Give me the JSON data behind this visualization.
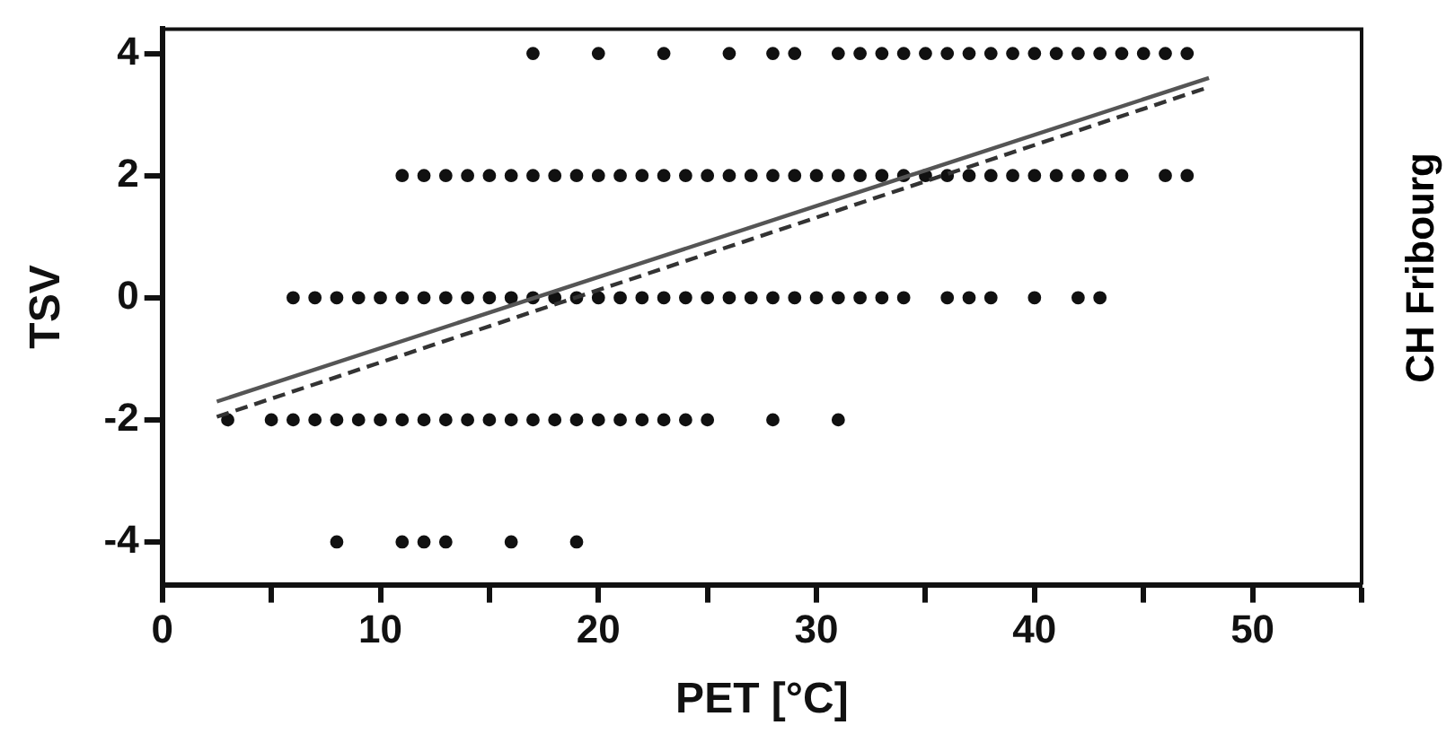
{
  "chart_data": {
    "type": "scatter",
    "xlabel": "PET [°C]",
    "ylabel": "TSV",
    "annotations": [
      "CH Fribourg"
    ],
    "xlim": [
      0,
      55
    ],
    "xticks": [
      0,
      {
        "value": 5,
        "label": null
      },
      10,
      {
        "value": 15,
        "label": null
      },
      20,
      {
        "value": 25,
        "label": null
      },
      30,
      {
        "value": 35,
        "label": null
      },
      40,
      {
        "value": 45,
        "label": null
      },
      50,
      {
        "value": 55,
        "label": null
      }
    ],
    "ylim": [
      -4.7,
      4.4
    ],
    "yticks": [
      -4,
      -2,
      0,
      2,
      4
    ],
    "grid": false,
    "legend": false,
    "marker": "circle",
    "series": [
      {
        "color": "#111111",
        "x": [
          17,
          20,
          23,
          26,
          28,
          29,
          31,
          32,
          33,
          34,
          35,
          36,
          37,
          38,
          39,
          40,
          41,
          42,
          43,
          44,
          45,
          46,
          47
        ],
        "values": [
          4,
          4,
          4,
          4,
          4,
          4,
          4,
          4,
          4,
          4,
          4,
          4,
          4,
          4,
          4,
          4,
          4,
          4,
          4,
          4,
          4,
          4,
          4
        ]
      },
      {
        "color": "#111111",
        "x": [
          11,
          12,
          13,
          14,
          15,
          16,
          17,
          18,
          19,
          20,
          21,
          22,
          23,
          24,
          25,
          26,
          27,
          28,
          29,
          30,
          31,
          32,
          33,
          34,
          35,
          36,
          37,
          38,
          39,
          40,
          41,
          42,
          43,
          44,
          46,
          47
        ],
        "values": [
          2,
          2,
          2,
          2,
          2,
          2,
          2,
          2,
          2,
          2,
          2,
          2,
          2,
          2,
          2,
          2,
          2,
          2,
          2,
          2,
          2,
          2,
          2,
          2,
          2,
          2,
          2,
          2,
          2,
          2,
          2,
          2,
          2,
          2,
          2,
          2
        ]
      },
      {
        "color": "#111111",
        "x": [
          6,
          7,
          8,
          9,
          10,
          11,
          12,
          13,
          14,
          15,
          16,
          17,
          18,
          19,
          20,
          21,
          22,
          23,
          24,
          25,
          26,
          27,
          28,
          29,
          30,
          31,
          32,
          33,
          34,
          36,
          37,
          38,
          40,
          42,
          43
        ],
        "values": [
          0,
          0,
          0,
          0,
          0,
          0,
          0,
          0,
          0,
          0,
          0,
          0,
          0,
          0,
          0,
          0,
          0,
          0,
          0,
          0,
          0,
          0,
          0,
          0,
          0,
          0,
          0,
          0,
          0,
          0,
          0,
          0,
          0,
          0,
          0
        ]
      },
      {
        "color": "#111111",
        "x": [
          3,
          5,
          6,
          7,
          8,
          9,
          10,
          11,
          12,
          13,
          14,
          15,
          16,
          17,
          18,
          19,
          20,
          21,
          22,
          23,
          24,
          25,
          28,
          31
        ],
        "values": [
          -2,
          -2,
          -2,
          -2,
          -2,
          -2,
          -2,
          -2,
          -2,
          -2,
          -2,
          -2,
          -2,
          -2,
          -2,
          -2,
          -2,
          -2,
          -2,
          -2,
          -2,
          -2,
          -2,
          -2
        ]
      },
      {
        "color": "#111111",
        "x": [
          8,
          11,
          12,
          13,
          16,
          19
        ],
        "values": [
          -4,
          -4,
          -4,
          -4,
          -4,
          -4
        ]
      },
      {
        "type": "line",
        "color": "#555555",
        "line_style": "solid",
        "marker": "none",
        "x": [
          2.5,
          48
        ],
        "values": [
          -1.7,
          3.6
        ]
      },
      {
        "type": "line",
        "color": "#333333",
        "line_style": "dashed",
        "marker": "none",
        "x": [
          2.5,
          48
        ],
        "values": [
          -1.95,
          3.45
        ]
      }
    ]
  }
}
